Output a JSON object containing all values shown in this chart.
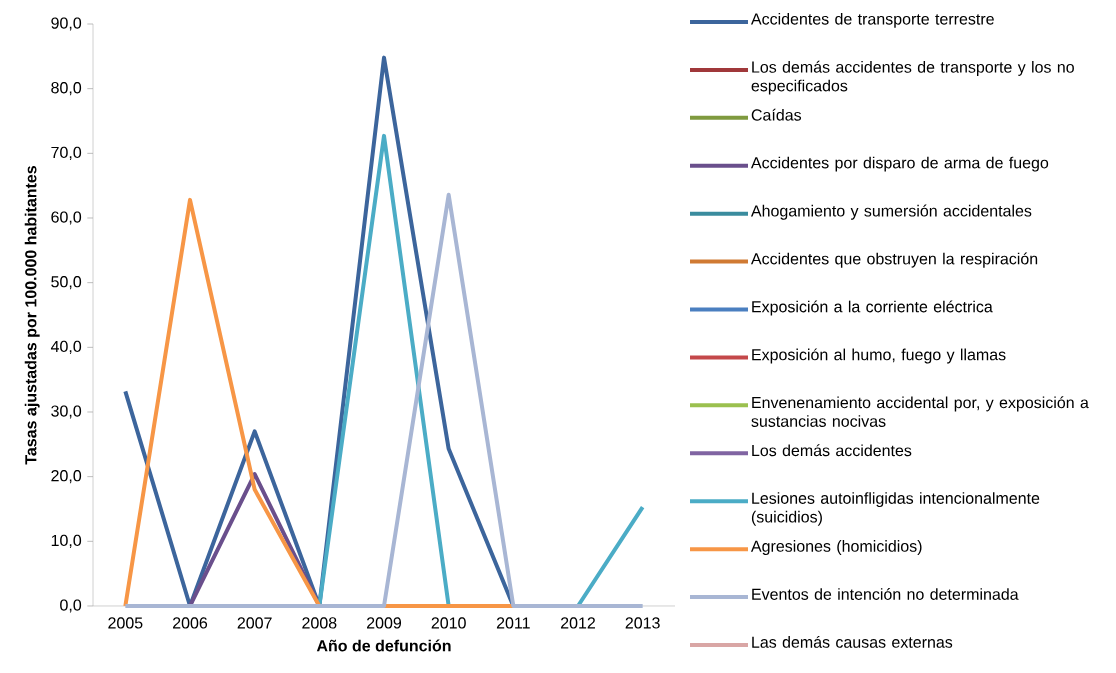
{
  "chart_data": {
    "type": "line",
    "xlabel": "Año de defunción",
    "ylabel": "Tasas ajustadas por 100.000 habitantes",
    "categories": [
      "2005",
      "2006",
      "2007",
      "2008",
      "2009",
      "2010",
      "2011",
      "2012",
      "2013"
    ],
    "ylim": [
      0,
      90
    ],
    "yticks": [
      {
        "value": 0,
        "label": "0,0"
      },
      {
        "value": 10,
        "label": "10,0"
      },
      {
        "value": 20,
        "label": "20,0"
      },
      {
        "value": 30,
        "label": "30,0"
      },
      {
        "value": 40,
        "label": "40,0"
      },
      {
        "value": 50,
        "label": "50,0"
      },
      {
        "value": 60,
        "label": "60,0"
      },
      {
        "value": 70,
        "label": "70,0"
      },
      {
        "value": 80,
        "label": "80,0"
      },
      {
        "value": 90,
        "label": "90,0"
      }
    ],
    "legend": "right",
    "series": [
      {
        "name": "Accidentes de transporte terrestre",
        "color": "#3c659c",
        "values": [
          33.2,
          0,
          27.0,
          0,
          84.8,
          24.3,
          0,
          null,
          null
        ]
      },
      {
        "name": "Los demás accidentes de transporte y los no especificados",
        "color": "#a0383a",
        "values": [
          null,
          null,
          null,
          null,
          null,
          null,
          null,
          null,
          null
        ]
      },
      {
        "name": "Caídas",
        "color": "#7f9a3f",
        "values": [
          null,
          null,
          null,
          null,
          null,
          null,
          null,
          null,
          null
        ]
      },
      {
        "name": "Accidentes por disparo de arma de fuego",
        "color": "#6a4f8c",
        "values": [
          null,
          0,
          20.4,
          0,
          null,
          null,
          null,
          null,
          null
        ]
      },
      {
        "name": "Ahogamiento y sumersión accidentales",
        "color": "#3a8c9e",
        "values": [
          null,
          null,
          null,
          null,
          null,
          null,
          null,
          null,
          null
        ]
      },
      {
        "name": "Accidentes que obstruyen la respiración",
        "color": "#d07a33",
        "values": [
          null,
          null,
          null,
          null,
          null,
          null,
          null,
          null,
          null
        ]
      },
      {
        "name": "Exposición a la corriente eléctrica",
        "color": "#4a7fc0",
        "values": [
          null,
          null,
          null,
          null,
          null,
          null,
          null,
          null,
          null
        ]
      },
      {
        "name": "Exposición al humo, fuego y llamas",
        "color": "#c4484a",
        "values": [
          null,
          null,
          null,
          null,
          null,
          null,
          null,
          null,
          null
        ]
      },
      {
        "name": "Envenenamiento accidental por, y exposición a sustancias nocivas",
        "color": "#9bc04f",
        "values": [
          null,
          null,
          null,
          null,
          null,
          null,
          null,
          null,
          null
        ]
      },
      {
        "name": "Los demás accidentes",
        "color": "#8064a2",
        "values": [
          null,
          null,
          null,
          null,
          null,
          null,
          null,
          null,
          null
        ]
      },
      {
        "name": "Lesiones autoinfligidas intencionalmente (suicidios)",
        "color": "#4bacc6",
        "values": [
          null,
          null,
          null,
          0,
          72.7,
          0,
          null,
          0,
          15.3
        ]
      },
      {
        "name": "Agresiones (homicidios)",
        "color": "#f79646",
        "values": [
          0,
          62.8,
          18.0,
          0,
          0,
          0,
          0,
          null,
          null
        ]
      },
      {
        "name": "Eventos de intención no determinada",
        "color": "#a8b6d4",
        "values": [
          0,
          0,
          0,
          0,
          0,
          63.6,
          0,
          0,
          0
        ]
      },
      {
        "name": "Las demás causas externas",
        "color": "#d9a6a5",
        "values": [
          null,
          null,
          null,
          null,
          null,
          null,
          null,
          null,
          null
        ]
      }
    ]
  }
}
